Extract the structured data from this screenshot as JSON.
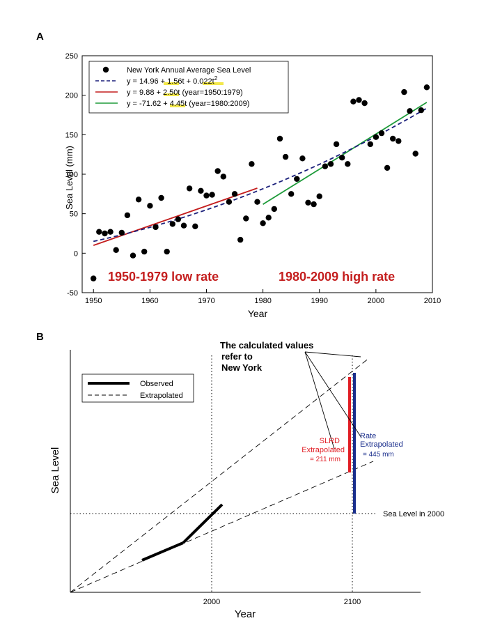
{
  "chart_data": [
    {
      "panel": "A",
      "type": "scatter",
      "xlabel": "Year",
      "ylabel": "Sea Level (mm)",
      "xlim": [
        1948,
        2010
      ],
      "ylim": [
        -50,
        250
      ],
      "xticks": [
        1950,
        1960,
        1970,
        1980,
        1990,
        2000,
        2010
      ],
      "yticks": [
        -50,
        0,
        50,
        100,
        150,
        200,
        250
      ],
      "x": [
        1950,
        1951,
        1952,
        1953,
        1954,
        1955,
        1956,
        1957,
        1958,
        1959,
        1960,
        1961,
        1962,
        1963,
        1964,
        1965,
        1966,
        1967,
        1968,
        1969,
        1970,
        1971,
        1972,
        1973,
        1974,
        1975,
        1976,
        1977,
        1978,
        1979,
        1980,
        1981,
        1982,
        1983,
        1984,
        1985,
        1986,
        1987,
        1988,
        1989,
        1990,
        1991,
        1992,
        1993,
        1994,
        1995,
        1996,
        1997,
        1998,
        1999,
        2000,
        2001,
        2002,
        2003,
        2004,
        2005,
        2006,
        2007,
        2008,
        2009
      ],
      "y": [
        -32,
        27,
        25,
        27,
        4,
        26,
        48,
        -3,
        68,
        2,
        60,
        33,
        70,
        2,
        37,
        43,
        35,
        82,
        34,
        79,
        73,
        74,
        104,
        97,
        65,
        75,
        17,
        44,
        113,
        65,
        38,
        45,
        56,
        145,
        122,
        75,
        94,
        120,
        64,
        62,
        72,
        110,
        113,
        138,
        121,
        113,
        192,
        194,
        190,
        138,
        147,
        152,
        108,
        145,
        142,
        204,
        180,
        126,
        181,
        210
      ],
      "series": [
        {
          "name": "New York Annual Average Sea Level",
          "style": "points",
          "color": "#000000"
        },
        {
          "name": "y = 14.96 + 1.56t + 0.022t²",
          "style": "dashed",
          "color": "#1a1f7a",
          "fit": {
            "form": "quadratic",
            "a": 14.96,
            "b": 1.56,
            "c": 0.022,
            "t0": 1950,
            "range": [
              1950,
              2009
            ]
          }
        },
        {
          "name": "y = 9.88 + 2.50t (year=1950:1979)",
          "style": "solid",
          "color": "#c41e1e",
          "fit": {
            "form": "linear",
            "a": 9.88,
            "b": 2.5,
            "t0": 1950,
            "range": [
              1950,
              1979
            ]
          }
        },
        {
          "name": "y = -71.62 + 4.45t (year=1980:2009)",
          "style": "solid",
          "color": "#1e9b3a",
          "fit": {
            "form": "linear",
            "a": -71.62,
            "b": 4.45,
            "t0": 1950,
            "range": [
              1980,
              2009
            ]
          }
        }
      ],
      "legend": {
        "position": "top-left",
        "entries": [
          {
            "pre": "New York Annual Average Sea Level"
          },
          {
            "pre": "y = 14.96 + ",
            "hl1": "1.56",
            "mid": "t + ",
            "hl2": "0.022",
            "post": "t",
            "sup": "2"
          },
          {
            "pre": "y = 9.88 + ",
            "hl1": "2.50",
            "post": "t (year=1950:1979)"
          },
          {
            "pre": "y = -71.62 + ",
            "hl1": "4.45",
            "post": "t (year=1980:2009)"
          }
        ]
      },
      "annotations": [
        "1950-1979 low rate",
        "1980-2009 high rate"
      ]
    },
    {
      "panel": "B",
      "type": "line",
      "xlabel": "Year",
      "ylabel": "Sea Level",
      "xticks": [
        "2000",
        "2100"
      ],
      "legend": [
        "Observed",
        "Extrapolated"
      ],
      "annotations": {
        "title": [
          "The calculated values",
          "refer to",
          "New York"
        ],
        "slrd": [
          "SLRD",
          "Extrapolated",
          "= 211 mm"
        ],
        "rate": [
          "Rate",
          "Extrapolated",
          "= 445 mm"
        ],
        "baseline": "Sea Level in 2000"
      },
      "values_mm": {
        "slrd_extrapolated": 211,
        "rate_extrapolated": 445
      }
    }
  ],
  "panel_labels": [
    "A",
    "B"
  ]
}
